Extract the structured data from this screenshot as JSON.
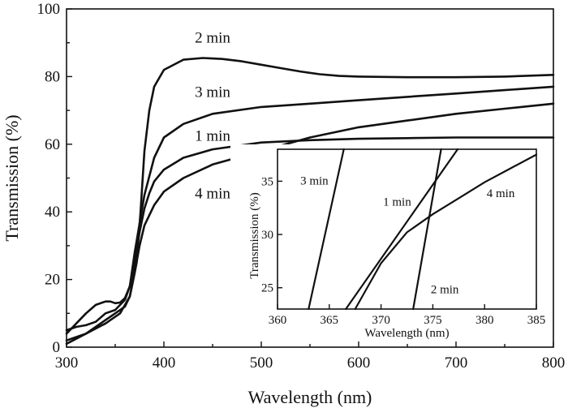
{
  "chart_data": [
    {
      "type": "line",
      "xlabel": "Wavelength (nm)",
      "ylabel": "Transmission (%)",
      "xlim": [
        300,
        800
      ],
      "ylim": [
        0,
        100
      ],
      "xticks": [
        "300",
        "400",
        "500",
        "600",
        "700",
        "800"
      ],
      "yticks": [
        "0",
        "20",
        "40",
        "60",
        "80",
        "100"
      ],
      "series": [
        {
          "name": "2 min",
          "x": [
            300,
            320,
            340,
            355,
            365,
            372,
            376,
            380,
            385,
            390,
            400,
            420,
            440,
            460,
            480,
            500,
            520,
            540,
            560,
            580,
            600,
            650,
            700,
            750,
            800
          ],
          "y": [
            2,
            4,
            7,
            10,
            15,
            25,
            40,
            58,
            70,
            77,
            82,
            85,
            85.5,
            85.2,
            84.5,
            83.5,
            82.5,
            81.5,
            80.7,
            80.2,
            80,
            79.8,
            79.8,
            80,
            80.5
          ]
        },
        {
          "name": "3 min",
          "x": [
            300,
            310,
            320,
            330,
            340,
            350,
            360,
            365,
            370,
            380,
            390,
            400,
            420,
            450,
            500,
            550,
            600,
            650,
            700,
            750,
            800
          ],
          "y": [
            5,
            6,
            6.5,
            7.5,
            10,
            11,
            14,
            18,
            28,
            45,
            56,
            62,
            66,
            69,
            71,
            72,
            73,
            74,
            75,
            76,
            77
          ]
        },
        {
          "name": "1 min",
          "x": [
            300,
            310,
            320,
            330,
            340,
            345,
            350,
            355,
            360,
            365,
            370,
            375,
            380,
            385,
            390,
            400,
            420,
            450,
            500,
            550,
            600,
            650,
            700,
            750,
            800
          ],
          "y": [
            4,
            7,
            10,
            12.5,
            13.5,
            13.5,
            13,
            13.2,
            14.5,
            18,
            25,
            34,
            41,
            45.5,
            49,
            52.5,
            56,
            58.5,
            60.5,
            61.2,
            61.6,
            61.8,
            62,
            62,
            62
          ]
        },
        {
          "name": "4 min",
          "x": [
            300,
            320,
            340,
            350,
            360,
            365,
            370,
            375,
            380,
            390,
            400,
            420,
            450,
            500,
            550,
            600,
            650,
            700,
            750,
            800
          ],
          "y": [
            1,
            4,
            8,
            10,
            12,
            15,
            22,
            30,
            36,
            42,
            46,
            50,
            54,
            58,
            62,
            65,
            67,
            69,
            70.5,
            72
          ]
        }
      ],
      "annotations": [
        {
          "text": "2 min",
          "x": 450,
          "y": 90
        },
        {
          "text": "3 min",
          "x": 450,
          "y": 74
        },
        {
          "text": "1 min",
          "x": 450,
          "y": 61
        },
        {
          "text": "4 min",
          "x": 450,
          "y": 44
        }
      ]
    },
    {
      "type": "line",
      "xlabel": "Wavelength (nm)",
      "ylabel": "Transmission (%)",
      "xlim": [
        360,
        385
      ],
      "ylim": [
        23,
        38
      ],
      "xticks": [
        "360",
        "365",
        "370",
        "375",
        "380",
        "385"
      ],
      "yticks": [
        "25",
        "30",
        "35"
      ],
      "series": [
        {
          "name": "3 min",
          "x": [
            363.0,
            366.4
          ],
          "y": [
            23,
            38
          ]
        },
        {
          "name": "1 min",
          "x": [
            366.6,
            377.4
          ],
          "y": [
            23,
            38
          ]
        },
        {
          "name": "2 min",
          "x": [
            373.1,
            375.8
          ],
          "y": [
            23,
            38
          ]
        },
        {
          "name": "4 min",
          "x": [
            367.5,
            370,
            372.5,
            375,
            377.5,
            380,
            382.5,
            385
          ],
          "y": [
            23,
            27.3,
            30.2,
            31.9,
            33.4,
            34.9,
            36.2,
            37.5
          ]
        }
      ],
      "annotations": [
        {
          "text": "3 min",
          "x": 362.2,
          "y": 34.7
        },
        {
          "text": "1 min",
          "x": 370.2,
          "y": 32.7
        },
        {
          "text": "4 min",
          "x": 380.2,
          "y": 33.5
        },
        {
          "text": "2 min",
          "x": 374.8,
          "y": 24.5
        }
      ]
    }
  ]
}
